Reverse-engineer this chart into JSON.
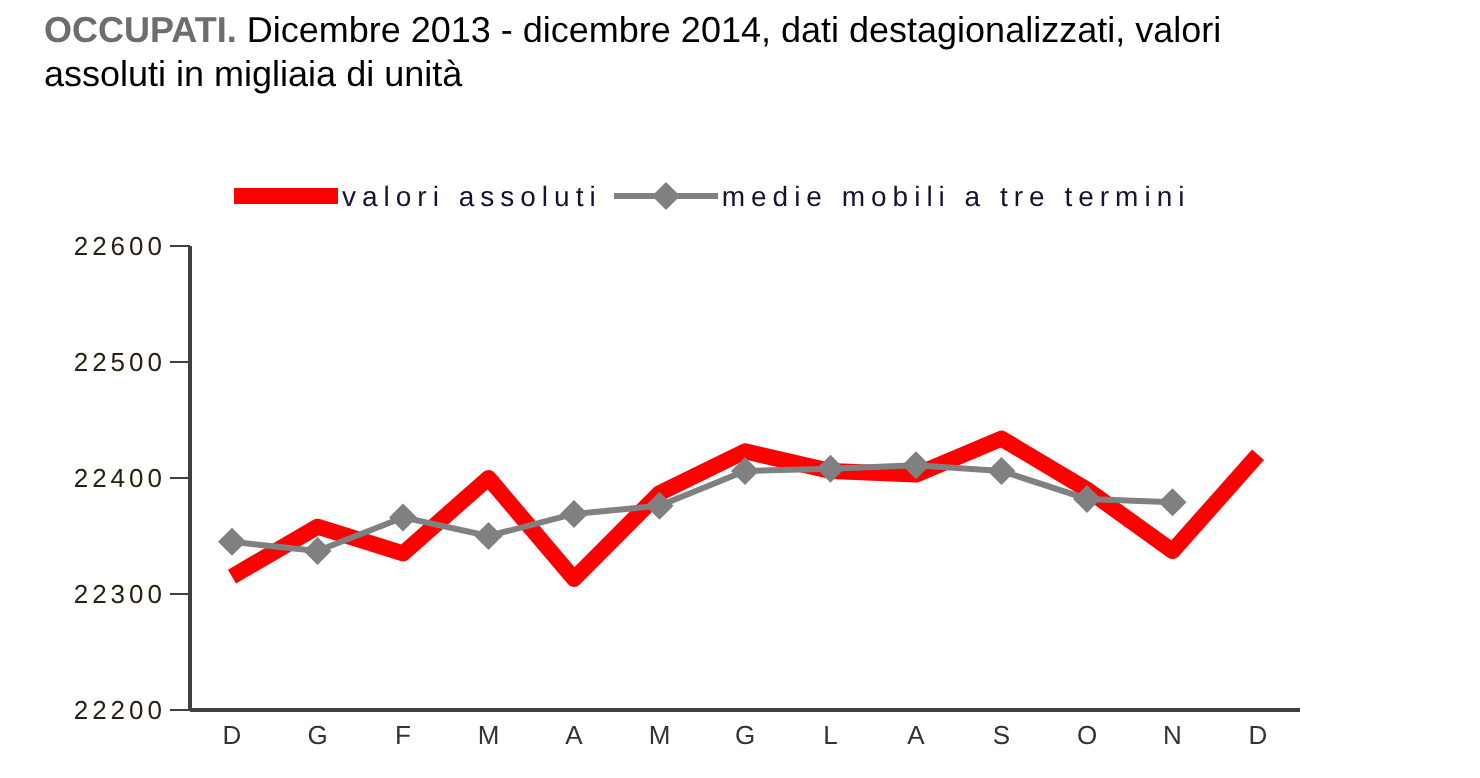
{
  "chart_data": {
    "type": "line",
    "title": "OCCUPATI.",
    "subtitle": "Dicembre 2013 - dicembre 2014, dati destagionalizzati, valori assoluti in migliaia di unità",
    "categories": [
      "D",
      "G",
      "F",
      "M",
      "A",
      "M",
      "G",
      "L",
      "A",
      "S",
      "O",
      "N",
      "D"
    ],
    "series": [
      {
        "name": "valori assoluti",
        "color": "#ff0000",
        "marker": "none",
        "values": [
          22315,
          22358,
          22335,
          22400,
          22313,
          22387,
          22423,
          22406,
          22403,
          22434,
          22390,
          22337,
          22420
        ]
      },
      {
        "name": "medie mobili a tre termini",
        "color": "#808080",
        "marker": "diamond",
        "values": [
          22345,
          22337,
          22366,
          22350,
          22369,
          22376,
          22406,
          22408,
          22411,
          22406,
          22382,
          22379,
          null
        ]
      }
    ],
    "ylim": [
      22200,
      22600
    ],
    "yticks": [
      22200,
      22300,
      22400,
      22500,
      22600
    ],
    "grid": false,
    "legend": "top"
  }
}
